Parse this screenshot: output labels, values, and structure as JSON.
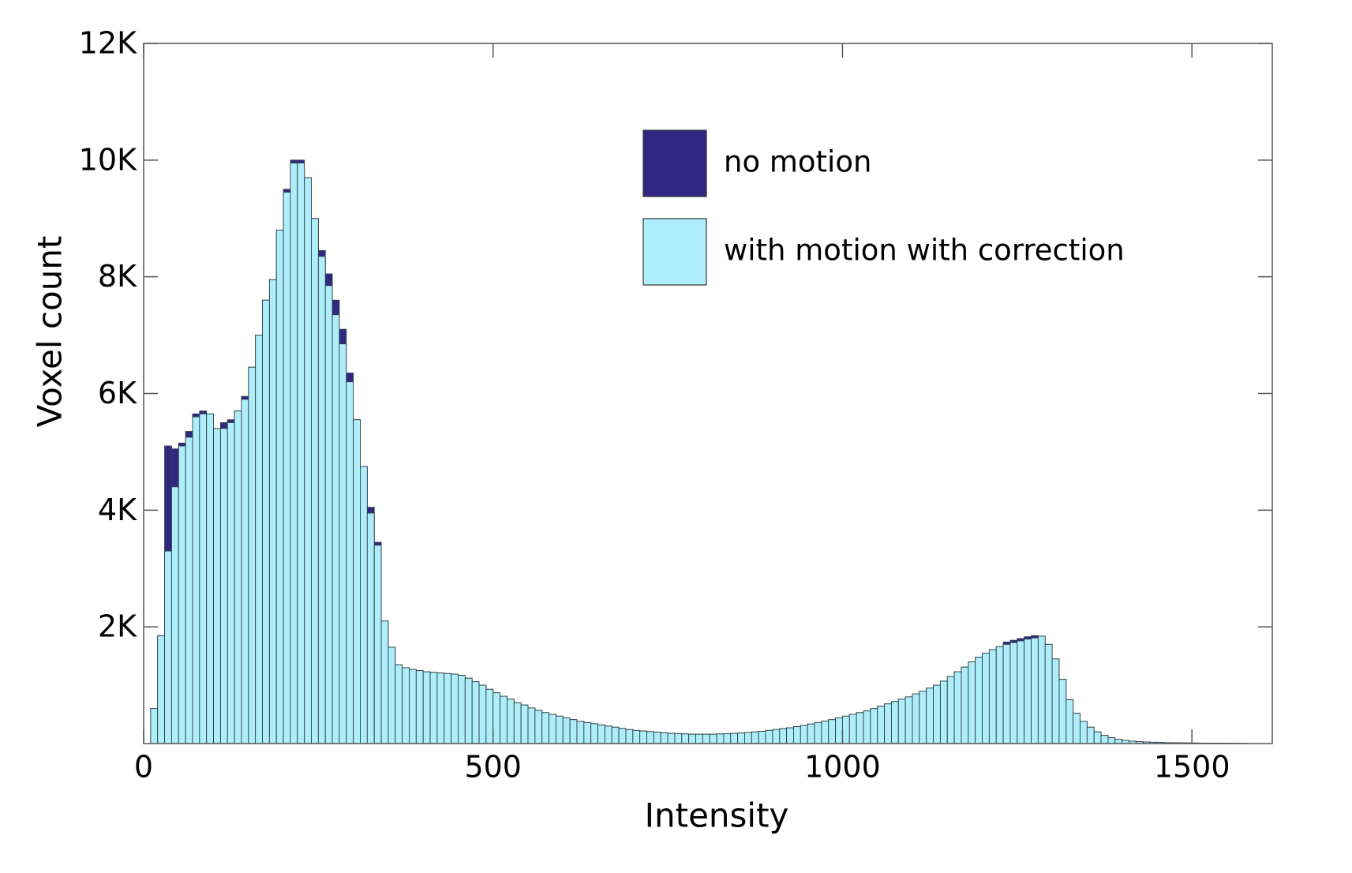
{
  "chart_data": {
    "type": "histogram",
    "x_label": "Intensity",
    "y_label": "Voxel count",
    "xlim": [
      0,
      1615
    ],
    "ylim": [
      0,
      12000
    ],
    "xticks": [
      0,
      500,
      1000,
      1500
    ],
    "yticks": [
      {
        "value": 2000,
        "label": "2K"
      },
      {
        "value": 4000,
        "label": "4K"
      },
      {
        "value": 6000,
        "label": "6K"
      },
      {
        "value": 8000,
        "label": "8K"
      },
      {
        "value": 10000,
        "label": "10K"
      },
      {
        "value": 12000,
        "label": "12K"
      }
    ],
    "legend": "upper center",
    "bins": [
      10,
      20,
      30,
      40,
      50,
      60,
      70,
      80,
      90,
      100,
      110,
      120,
      130,
      140,
      150,
      160,
      170,
      180,
      190,
      200,
      210,
      220,
      230,
      240,
      250,
      260,
      270,
      280,
      290,
      300,
      310,
      320,
      330,
      340,
      350,
      360,
      370,
      380,
      390,
      400,
      410,
      420,
      430,
      440,
      450,
      460,
      470,
      480,
      490,
      500,
      510,
      520,
      530,
      540,
      550,
      560,
      570,
      580,
      590,
      600,
      610,
      620,
      630,
      640,
      650,
      660,
      670,
      680,
      690,
      700,
      710,
      720,
      730,
      740,
      750,
      760,
      770,
      780,
      790,
      800,
      810,
      820,
      830,
      840,
      850,
      860,
      870,
      880,
      890,
      900,
      910,
      920,
      930,
      940,
      950,
      960,
      970,
      980,
      990,
      1000,
      1010,
      1020,
      1030,
      1040,
      1050,
      1060,
      1070,
      1080,
      1090,
      1100,
      1110,
      1120,
      1130,
      1140,
      1150,
      1160,
      1170,
      1180,
      1190,
      1200,
      1210,
      1220,
      1230,
      1240,
      1250,
      1260,
      1270,
      1280,
      1290,
      1300,
      1310,
      1320,
      1330,
      1340,
      1350,
      1360,
      1370,
      1380,
      1390,
      1400,
      1410,
      1420,
      1430,
      1440,
      1450,
      1460,
      1470,
      1480,
      1490,
      1500,
      1510,
      1520,
      1530,
      1540,
      1550,
      1560,
      1570,
      1580
    ],
    "series": [
      {
        "name": "no motion",
        "color": "#312783",
        "values": [
          600,
          1850,
          5100,
          5050,
          5150,
          5350,
          5650,
          5700,
          5650,
          5400,
          5500,
          5550,
          5700,
          5950,
          6450,
          7000,
          7600,
          7950,
          8800,
          9500,
          10000,
          10000,
          9700,
          9000,
          8450,
          8050,
          7600,
          7100,
          6350,
          5550,
          4750,
          4050,
          3450,
          2100,
          1650,
          1350,
          1300,
          1270,
          1250,
          1230,
          1220,
          1210,
          1200,
          1190,
          1170,
          1120,
          1060,
          1000,
          930,
          870,
          810,
          760,
          700,
          660,
          610,
          570,
          530,
          500,
          470,
          440,
          410,
          380,
          360,
          340,
          320,
          300,
          280,
          260,
          240,
          225,
          215,
          205,
          195,
          185,
          175,
          170,
          165,
          160,
          160,
          160,
          160,
          165,
          170,
          175,
          180,
          190,
          200,
          210,
          225,
          240,
          255,
          270,
          290,
          310,
          335,
          360,
          385,
          410,
          440,
          470,
          500,
          530,
          560,
          600,
          640,
          680,
          720,
          760,
          800,
          850,
          900,
          950,
          1000,
          1070,
          1150,
          1230,
          1310,
          1400,
          1480,
          1550,
          1610,
          1660,
          1740,
          1770,
          1800,
          1830,
          1850,
          1840,
          1700,
          1450,
          1100,
          750,
          520,
          380,
          280,
          200,
          140,
          100,
          75,
          55,
          40,
          32,
          26,
          22,
          18,
          15,
          13,
          11,
          10,
          9,
          8,
          7,
          6,
          5,
          5,
          4,
          3
        ]
      },
      {
        "name": "with motion with correction",
        "color": "#aeeefa",
        "values": [
          600,
          1850,
          3300,
          4400,
          5100,
          5250,
          5600,
          5650,
          5650,
          5400,
          5400,
          5500,
          5700,
          5900,
          6450,
          7000,
          7600,
          7950,
          8800,
          9450,
          9950,
          9950,
          9700,
          9000,
          8350,
          7850,
          7350,
          6850,
          6200,
          5550,
          4750,
          3950,
          3400,
          2100,
          1650,
          1350,
          1300,
          1270,
          1250,
          1230,
          1220,
          1210,
          1200,
          1190,
          1170,
          1120,
          1060,
          1000,
          930,
          870,
          810,
          760,
          700,
          660,
          610,
          570,
          530,
          500,
          470,
          440,
          410,
          380,
          360,
          340,
          320,
          300,
          280,
          260,
          240,
          225,
          215,
          205,
          195,
          185,
          175,
          170,
          165,
          160,
          160,
          160,
          160,
          165,
          170,
          175,
          180,
          190,
          200,
          210,
          225,
          240,
          255,
          270,
          290,
          310,
          335,
          360,
          385,
          410,
          440,
          470,
          500,
          530,
          560,
          600,
          640,
          680,
          720,
          760,
          800,
          850,
          900,
          950,
          1000,
          1070,
          1150,
          1230,
          1310,
          1400,
          1480,
          1550,
          1610,
          1660,
          1700,
          1730,
          1760,
          1790,
          1810,
          1840,
          1700,
          1450,
          1100,
          750,
          520,
          380,
          280,
          200,
          140,
          100,
          75,
          55,
          40,
          32,
          26,
          22,
          18,
          15,
          13,
          11,
          10,
          9,
          8,
          7,
          6,
          5,
          5,
          4,
          3
        ]
      }
    ]
  }
}
